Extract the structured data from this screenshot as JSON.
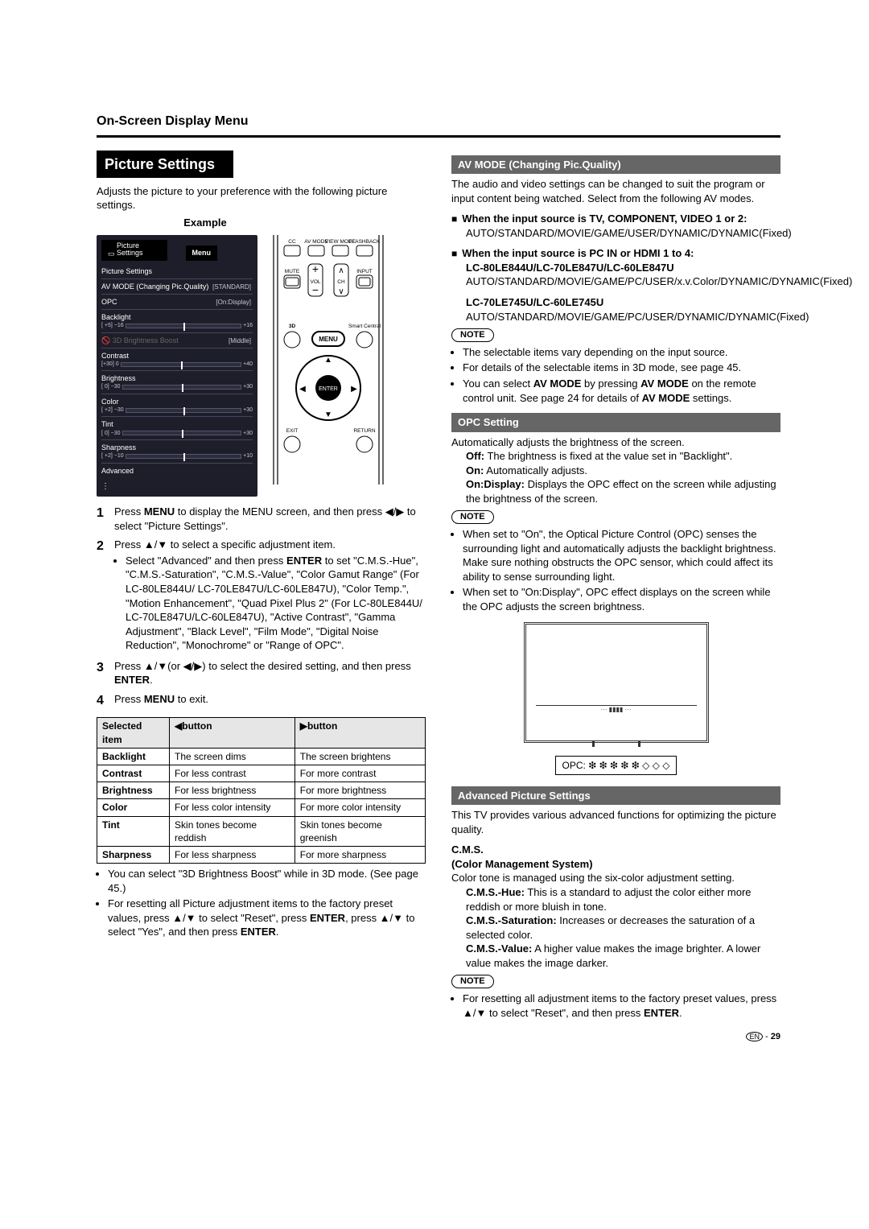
{
  "header": {
    "title": "On-Screen Display Menu"
  },
  "left": {
    "h1": "Picture Settings",
    "intro": "Adjusts the picture to your preference with the following picture settings.",
    "example_label": "Example",
    "menu": {
      "tab_icon_label": "Picture Settings",
      "menu_word": "Menu",
      "header": "Picture Settings",
      "rows": [
        {
          "label": "AV MODE (Changing Pic.Quality)",
          "right": "[STANDARD]"
        },
        {
          "label": "OPC",
          "right": "[On:Display]"
        },
        {
          "label": "Backlight",
          "range_left": "[ +5]  −16",
          "range_right": "+16"
        },
        {
          "label": "3D Brightness Boost",
          "right": "[Middle]",
          "disabled": true
        },
        {
          "label": "Contrast",
          "range_left": "[+30]    0",
          "range_right": "+40"
        },
        {
          "label": "Brightness",
          "range_left": "[   0]  −30",
          "range_right": "+30"
        },
        {
          "label": "Color",
          "range_left": "[ +2]  −30",
          "range_right": "+30"
        },
        {
          "label": "Tint",
          "range_left": "[   0]  −30",
          "range_right": "+30"
        },
        {
          "label": "Sharpness",
          "range_left": "[ +2]  −10",
          "range_right": "+10"
        },
        {
          "label": "Advanced"
        }
      ],
      "chevrons": "⋮"
    },
    "remote": {
      "cc": "CC",
      "avmode": "AV MODE",
      "viewmode": "VIEW MODE",
      "flashback": "FLASHBACK",
      "mute": "MUTE",
      "vol": "VOL",
      "ch": "CH",
      "input": "INPUT",
      "threeD": "3D",
      "menu": "MENU",
      "smart": "Smart Central",
      "enter": "ENTER",
      "exit": "EXIT",
      "return": "RETURN"
    },
    "steps": [
      {
        "n": "1",
        "text_parts": [
          "Press ",
          "MENU",
          " to display the MENU screen, and then press ◀/▶ to select \"Picture Settings\"."
        ]
      },
      {
        "n": "2",
        "text_parts": [
          "Press ▲/▼ to select a specific adjustment item."
        ],
        "bullets": [
          "Select \"Advanced\" and then press ENTER to set \"C.M.S.-Hue\", \"C.M.S.-Saturation\", \"C.M.S.-Value\", \"Color Gamut Range\" (For LC-80LE844U/ LC-70LE847U/LC-60LE847U), \"Color Temp.\", \"Motion Enhancement\", \"Quad Pixel Plus 2\" (For LC-80LE844U/ LC-70LE847U/LC-60LE847U), \"Active Contrast\", \"Gamma Adjustment\", \"Black Level\", \"Film Mode\", \"Digital Noise Reduction\", \"Monochrome\" or \"Range of OPC\"."
        ]
      },
      {
        "n": "3",
        "text_parts": [
          "Press ▲/▼(or ◀/▶) to select the desired setting, and then press ",
          "ENTER",
          "."
        ]
      },
      {
        "n": "4",
        "text_parts": [
          "Press ",
          "MENU",
          " to exit."
        ]
      }
    ],
    "table": {
      "head": [
        "Selected item",
        "◀button",
        "▶button"
      ],
      "rows": [
        [
          "Backlight",
          "The screen dims",
          "The screen brightens"
        ],
        [
          "Contrast",
          "For less contrast",
          "For more contrast"
        ],
        [
          "Brightness",
          "For less brightness",
          "For more brightness"
        ],
        [
          "Color",
          "For less color intensity",
          "For more color intensity"
        ],
        [
          "Tint",
          "Skin tones become reddish",
          "Skin tones become greenish"
        ],
        [
          "Sharpness",
          "For less sharpness",
          "For more sharpness"
        ]
      ]
    },
    "footnotes": [
      "You can select \"3D Brightness Boost\" while in 3D mode. (See page 45.)",
      "For resetting all Picture adjustment items to the factory preset values, press ▲/▼ to select \"Reset\", press ENTER, press ▲/▼ to select \"Yes\", and then press ENTER."
    ]
  },
  "right": {
    "avmode": {
      "title": "AV MODE (Changing Pic.Quality)",
      "intro": "The audio and video settings can be changed to suit the program or input content being watched. Select from the following AV modes.",
      "groups": [
        {
          "head": "When the input source is TV, COMPONENT, VIDEO 1 or 2:",
          "body": "AUTO/STANDARD/MOVIE/GAME/USER/DYNAMIC/DYNAMIC(Fixed)"
        },
        {
          "head": "When the input source is PC IN or HDMI 1 to 4:",
          "sub": "LC-80LE844U/LC-70LE847U/LC-60LE847U",
          "body": "AUTO/STANDARD/MOVIE/GAME/PC/USER/x.v.Color/DYNAMIC/DYNAMIC(Fixed)",
          "sub2": "LC-70LE745U/LC-60LE745U",
          "body2": "AUTO/STANDARD/MOVIE/GAME/PC/USER/DYNAMIC/DYNAMIC(Fixed)"
        }
      ],
      "note_label": "NOTE",
      "notes": [
        "The selectable items vary depending on the input source.",
        "For details of the selectable items in 3D mode, see page 45.",
        "You can select AV MODE by pressing AV MODE on the remote control unit. See page 24 for details of AV MODE settings."
      ]
    },
    "opc": {
      "title": "OPC Setting",
      "intro": "Automatically adjusts the brightness of the screen.",
      "defs": [
        {
          "k": "Off:",
          "v": "The brightness is fixed at the value set in \"Backlight\"."
        },
        {
          "k": "On:",
          "v": "Automatically adjusts."
        },
        {
          "k": "On:Display:",
          "v": "Displays the OPC effect on the screen while adjusting the brightness of the screen."
        }
      ],
      "note_label": "NOTE",
      "notes": [
        "When set to \"On\", the Optical Picture Control (OPC) senses the surrounding light and automatically adjusts the backlight brightness. Make sure nothing obstructs the OPC sensor, which could affect its ability to sense surrounding light.",
        "When set to \"On:Display\", OPC effect displays on the screen while the OPC adjusts the screen brightness."
      ],
      "diagram_inner": "··· ▮▮▮▮ ···",
      "caption": "OPC: ❇ ❇ ❇ ❇ ❇ ◇ ◇ ◇"
    },
    "adv": {
      "title": "Advanced Picture Settings",
      "intro": "This TV provides various advanced functions for optimizing the picture quality.",
      "cms_head1": "C.M.S.",
      "cms_head2": "(Color Management System)",
      "cms_intro": "Color tone is managed using the six-color adjustment setting.",
      "cms_defs": [
        {
          "k": "C.M.S.-Hue:",
          "v": "This is a standard to adjust the color either more reddish or more bluish in tone."
        },
        {
          "k": "C.M.S.-Saturation:",
          "v": "Increases or decreases the saturation of a selected color."
        },
        {
          "k": "C.M.S.-Value:",
          "v": "A higher value makes the image brighter. A lower value makes the image darker."
        }
      ],
      "note_label": "NOTE",
      "notes": [
        "For resetting all adjustment items to the factory preset values, press ▲/▼ to select \"Reset\", and then press ENTER."
      ]
    }
  },
  "footer": {
    "lang": "EN",
    "page": "29"
  }
}
